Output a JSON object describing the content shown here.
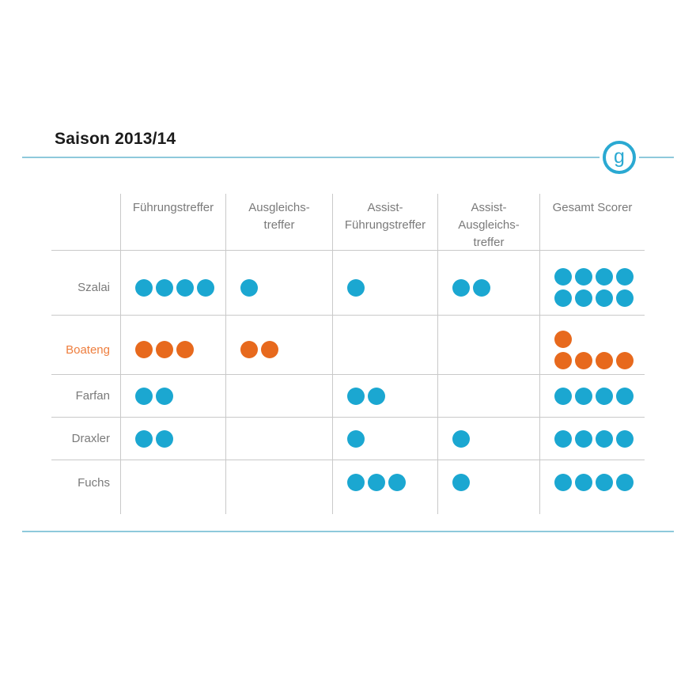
{
  "header": {
    "title": "Saison 2013/14",
    "logo_letter": "g"
  },
  "chart_data": {
    "type": "pictogram-table",
    "title": "Saison 2013/14",
    "dot_unit": 1,
    "max_dots_per_line": 4,
    "columns": [
      "Führungstreffer",
      "Ausgleichs-\ntreffer",
      "Assist-\nFührungstreffer",
      "Assist-\nAusgleichs-\ntreffer",
      "Gesamt Scorer"
    ],
    "rows": [
      {
        "label": "Szalai",
        "color": "blue",
        "values": [
          4,
          1,
          1,
          2,
          8
        ]
      },
      {
        "label": "Boateng",
        "color": "orange",
        "values": [
          3,
          2,
          0,
          0,
          5
        ]
      },
      {
        "label": "Farfan",
        "color": "blue",
        "values": [
          2,
          0,
          2,
          0,
          4
        ]
      },
      {
        "label": "Draxler",
        "color": "blue",
        "values": [
          2,
          0,
          1,
          1,
          4
        ]
      },
      {
        "label": "Fuchs",
        "color": "blue",
        "values": [
          0,
          0,
          3,
          1,
          4
        ]
      }
    ],
    "colors": {
      "blue": "#1BA7D1",
      "orange": "#E7691D",
      "orange_label": "#EE7E3E",
      "label_gray": "#7A7A7A",
      "grid_line": "#C9C9C9",
      "rule_blue": "#8EC9DB",
      "logo_blue": "#2AA9D2"
    }
  }
}
